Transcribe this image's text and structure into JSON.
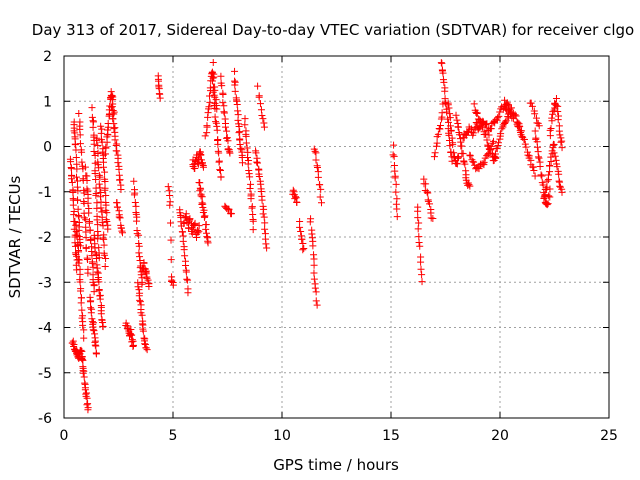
{
  "chart_data": {
    "type": "scatter",
    "title": "Day 313 of 2017, Sidereal Day-to-day VTEC variation (SDTVAR) for receiver clgo",
    "xlabel": "GPS time / hours",
    "ylabel": "SDTVAR / TECUs",
    "xlim": [
      0,
      25
    ],
    "ylim": [
      -6,
      2
    ],
    "xticks": [
      0,
      5,
      10,
      15,
      20,
      25
    ],
    "yticks": [
      -6,
      -5,
      -4,
      -3,
      -2,
      -1,
      0,
      1,
      2
    ],
    "grid": true,
    "marker": "+",
    "marker_color": "#ff0000",
    "series": [
      {
        "name": "SDTVAR",
        "segments": [
          {
            "x0": 0.3,
            "x1": 0.6,
            "y": [
              -0.3,
              -0.6,
              -0.9,
              -1.2,
              -1.6,
              -2.0,
              -2.4,
              -2.7
            ]
          },
          {
            "x0": 0.4,
            "x1": 0.85,
            "y": [
              -4.3,
              -4.4,
              -4.5,
              -4.6,
              -4.7,
              -4.6,
              -4.5,
              -4.7
            ]
          },
          {
            "x0": 0.45,
            "x1": 0.75,
            "y": [
              0.6,
              0.3,
              0.0,
              -0.5,
              -1.0,
              -1.5,
              -1.9,
              -2.2
            ]
          },
          {
            "x0": 0.55,
            "x1": 0.9,
            "y": [
              -1.7,
              -2.0,
              -2.3,
              -2.6,
              -3.0,
              -3.4,
              -3.8,
              -4.2
            ]
          },
          {
            "x0": 0.7,
            "x1": 1.1,
            "y": [
              0.7,
              0.2,
              -0.3,
              -0.8,
              -1.3,
              -1.8,
              -2.3,
              -2.8
            ]
          },
          {
            "x0": 0.8,
            "x1": 1.1,
            "y": [
              -4.6,
              -4.9,
              -5.1,
              -5.4,
              -5.6,
              -5.8
            ]
          },
          {
            "x0": 1.0,
            "x1": 1.4,
            "y": [
              -0.5,
              -0.9,
              -1.3,
              -1.7,
              -2.1,
              -2.5,
              -2.9,
              -3.2
            ]
          },
          {
            "x0": 1.2,
            "x1": 1.5,
            "y": [
              -3.3,
              -3.6,
              -3.9,
              -4.1,
              -4.3,
              -4.6
            ]
          },
          {
            "x0": 1.3,
            "x1": 1.6,
            "y": [
              0.8,
              0.4,
              0.0,
              -0.5,
              -1.0,
              -1.5,
              -2.0,
              -2.4
            ]
          },
          {
            "x0": 1.4,
            "x1": 1.8,
            "y": [
              -2.0,
              -2.3,
              -2.6,
              -2.9,
              -3.2,
              -3.5,
              -3.8,
              -4.0
            ]
          },
          {
            "x0": 1.5,
            "x1": 1.9,
            "y": [
              0.2,
              -0.2,
              -0.6,
              -1.0,
              -1.4,
              -1.8,
              -2.2,
              -2.6
            ]
          },
          {
            "x0": 1.7,
            "x1": 2.0,
            "y": [
              0.5,
              0.1,
              -0.3,
              -0.7,
              -1.1,
              -1.5,
              -1.8
            ]
          },
          {
            "x0": 1.9,
            "x1": 2.3,
            "y": [
              -0.2,
              0.1,
              0.4,
              0.7,
              1.0,
              1.2,
              1.0,
              0.7
            ]
          },
          {
            "x0": 2.2,
            "x1": 2.6,
            "y": [
              0.9,
              0.6,
              0.3,
              0.0,
              -0.3,
              -0.6,
              -0.9
            ]
          },
          {
            "x0": 2.4,
            "x1": 2.7,
            "y": [
              -1.2,
              -1.4,
              -1.7,
              -1.9
            ]
          },
          {
            "x0": 2.85,
            "x1": 3.2,
            "y": [
              -3.9,
              -4.0,
              -4.2,
              -4.1,
              -4.3,
              -4.4
            ]
          },
          {
            "x0": 3.2,
            "x1": 3.6,
            "y": [
              -0.8,
              -1.2,
              -1.6,
              -2.0,
              -2.4,
              -2.8,
              -3.0
            ]
          },
          {
            "x0": 3.4,
            "x1": 3.8,
            "y": [
              -3.0,
              -3.3,
              -3.6,
              -3.9,
              -4.2,
              -4.4,
              -4.5
            ]
          },
          {
            "x0": 3.6,
            "x1": 3.9,
            "y": [
              -2.7,
              -2.6,
              -2.8,
              -2.9,
              -3.1
            ]
          },
          {
            "x0": 4.3,
            "x1": 4.4,
            "y": [
              1.5,
              1.3,
              1.1
            ]
          },
          {
            "x0": 4.8,
            "x1": 5.0,
            "y": [
              -0.9,
              -1.3,
              -2.9,
              -3.1
            ]
          },
          {
            "x0": 5.3,
            "x1": 5.7,
            "y": [
              -1.4,
              -1.7,
              -2.0,
              -2.4,
              -2.8,
              -3.2
            ]
          },
          {
            "x0": 5.5,
            "x1": 6.2,
            "y": [
              -1.7,
              -1.5,
              -1.8,
              -1.6,
              -1.9,
              -1.7,
              -2.0,
              -1.8
            ]
          },
          {
            "x0": 5.9,
            "x1": 6.4,
            "y": [
              -0.3,
              -0.5,
              -0.2,
              -0.4,
              -0.1,
              -0.3,
              -0.5
            ]
          },
          {
            "x0": 6.2,
            "x1": 6.6,
            "y": [
              -0.8,
              -1.0,
              -1.2,
              -1.4,
              -1.6,
              -1.9,
              -2.1
            ]
          },
          {
            "x0": 6.5,
            "x1": 7.0,
            "y": [
              0.2,
              0.6,
              1.0,
              1.4,
              1.8,
              1.2,
              0.8
            ]
          },
          {
            "x0": 6.8,
            "x1": 7.2,
            "y": [
              1.6,
              1.2,
              0.8,
              0.4,
              0.0,
              -0.4,
              -0.7
            ]
          },
          {
            "x0": 7.2,
            "x1": 7.6,
            "y": [
              1.5,
              1.1,
              0.7,
              0.3,
              0.0,
              -0.2
            ]
          },
          {
            "x0": 7.4,
            "x1": 7.7,
            "y": [
              -1.3,
              -1.5
            ]
          },
          {
            "x0": 7.8,
            "x1": 8.2,
            "y": [
              1.6,
              1.2,
              0.9,
              0.5,
              0.2,
              -0.1,
              -0.3
            ]
          },
          {
            "x0": 8.3,
            "x1": 8.7,
            "y": [
              0.6,
              0.2,
              -0.2,
              -0.6,
              -1.0,
              -1.4,
              -1.8
            ]
          },
          {
            "x0": 8.9,
            "x1": 9.2,
            "y": [
              1.3,
              0.8,
              0.4
            ]
          },
          {
            "x0": 8.8,
            "x1": 9.3,
            "y": [
              -0.1,
              -0.4,
              -0.7,
              -1.0,
              -1.4,
              -1.8,
              -2.2
            ]
          },
          {
            "x0": 10.5,
            "x1": 10.7,
            "y": [
              -1.0,
              -1.2
            ]
          },
          {
            "x0": 10.8,
            "x1": 11.0,
            "y": [
              -1.7,
              -2.0,
              -2.3
            ]
          },
          {
            "x0": 11.3,
            "x1": 11.6,
            "y": [
              -1.6,
              -2.0,
              -2.5,
              -3.0,
              -3.5
            ]
          },
          {
            "x0": 11.5,
            "x1": 11.8,
            "y": [
              0.0,
              -0.4,
              -0.8,
              -1.2
            ]
          },
          {
            "x0": 15.1,
            "x1": 15.3,
            "y": [
              0.0,
              -0.5,
              -1.0,
              -1.5
            ]
          },
          {
            "x0": 16.2,
            "x1": 16.4,
            "y": [
              -1.3,
              -1.8,
              -2.4,
              -3.0
            ]
          },
          {
            "x0": 16.5,
            "x1": 16.9,
            "y": [
              -0.7,
              -1.0,
              -1.3,
              -1.6
            ]
          },
          {
            "x0": 17.0,
            "x1": 17.4,
            "y": [
              -0.2,
              0.2,
              0.5,
              0.9
            ]
          },
          {
            "x0": 17.3,
            "x1": 17.8,
            "y": [
              1.9,
              1.6,
              1.2,
              0.8,
              0.4,
              0.0,
              -0.3
            ]
          },
          {
            "x0": 17.6,
            "x1": 18.1,
            "y": [
              1.0,
              0.6,
              0.2,
              -0.2,
              -0.4,
              -0.2
            ]
          },
          {
            "x0": 18.0,
            "x1": 18.6,
            "y": [
              0.7,
              0.4,
              0.1,
              -0.2,
              -0.5,
              -0.8,
              -0.9
            ]
          },
          {
            "x0": 18.3,
            "x1": 19.5,
            "y": [
              0.2,
              0.3,
              0.4,
              0.3,
              0.5,
              0.4,
              0.6,
              0.5,
              0.3
            ]
          },
          {
            "x0": 18.8,
            "x1": 19.8,
            "y": [
              0.9,
              0.7,
              0.5,
              0.3,
              0.0,
              -0.2,
              -0.3
            ]
          },
          {
            "x0": 18.6,
            "x1": 19.7,
            "y": [
              -0.2,
              -0.4,
              -0.5,
              -0.4,
              -0.3,
              -0.1,
              0.1
            ]
          },
          {
            "x0": 19.5,
            "x1": 20.6,
            "y": [
              0.4,
              0.5,
              0.6,
              0.8,
              0.9,
              0.8,
              0.6
            ]
          },
          {
            "x0": 19.7,
            "x1": 20.4,
            "y": [
              -0.3,
              -0.1,
              0.2,
              0.4,
              0.6,
              0.7
            ]
          },
          {
            "x0": 20.2,
            "x1": 21.0,
            "y": [
              1.0,
              0.9,
              0.8,
              0.7,
              0.5,
              0.3
            ]
          },
          {
            "x0": 20.8,
            "x1": 21.6,
            "y": [
              0.5,
              0.3,
              0.1,
              -0.2,
              -0.4,
              -0.6
            ]
          },
          {
            "x0": 21.4,
            "x1": 21.8,
            "y": [
              1.0,
              0.7,
              0.4
            ]
          },
          {
            "x0": 21.6,
            "x1": 22.3,
            "y": [
              0.3,
              0.0,
              -0.4,
              -0.8,
              -1.2,
              -1.3,
              -1.0
            ]
          },
          {
            "x0": 22.0,
            "x1": 22.5,
            "y": [
              -1.2,
              -1.0,
              -0.7,
              -0.4,
              -0.1,
              0.1
            ]
          },
          {
            "x0": 22.3,
            "x1": 22.85,
            "y": [
              0.3,
              0.6,
              0.9,
              1.0,
              0.7,
              0.3,
              0.0
            ]
          },
          {
            "x0": 22.5,
            "x1": 22.85,
            "y": [
              -0.2,
              -0.5,
              -0.8,
              -1.0
            ]
          }
        ]
      }
    ]
  }
}
